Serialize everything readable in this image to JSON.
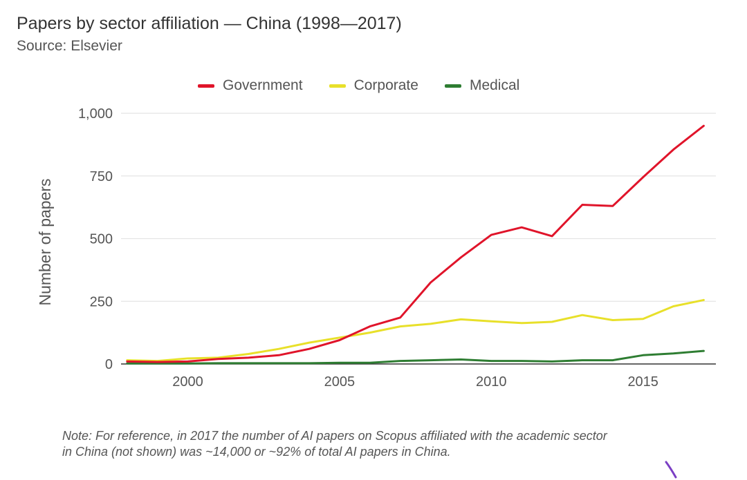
{
  "header": {
    "title": "Papers by sector affiliation — China (1998—2017)",
    "subtitle": "Source: Elsevier"
  },
  "note": {
    "line1": "Note: For reference, in 2017 the number of AI papers on Scopus affiliated with the academic sector",
    "line2": "in China (not shown) was ~14,000 or ~92% of total AI papers in China."
  },
  "colors": {
    "government": "#e0142a",
    "corporate": "#e8e02a",
    "medical": "#2e7d32",
    "grid": "#e4e4e4",
    "baseline": "#333333"
  },
  "chart_data": {
    "type": "line",
    "title": "Papers by sector affiliation — China (1998—2017)",
    "subtitle": "Source: Elsevier",
    "xlabel": "",
    "ylabel": "Number of papers",
    "x": [
      1998,
      1999,
      2000,
      2001,
      2002,
      2003,
      2004,
      2005,
      2006,
      2007,
      2008,
      2009,
      2010,
      2011,
      2012,
      2013,
      2014,
      2015,
      2016,
      2017
    ],
    "xlim": [
      1997.8,
      2017.4
    ],
    "ylim": [
      0,
      1000
    ],
    "x_ticks": [
      2000,
      2005,
      2010,
      2015
    ],
    "y_ticks": [
      0,
      250,
      500,
      750,
      1000
    ],
    "y_tick_labels": [
      "0",
      "250",
      "500",
      "750",
      "1,000"
    ],
    "grid": true,
    "legend": "top-center",
    "series": [
      {
        "name": "Government",
        "color": "#e0142a",
        "values": [
          10,
          8,
          10,
          20,
          25,
          35,
          60,
          95,
          150,
          185,
          325,
          425,
          515,
          545,
          510,
          635,
          630,
          745,
          855,
          950
        ]
      },
      {
        "name": "Corporate",
        "color": "#e8e02a",
        "values": [
          15,
          12,
          22,
          25,
          40,
          60,
          85,
          105,
          125,
          150,
          160,
          178,
          170,
          163,
          168,
          195,
          175,
          180,
          230,
          255
        ]
      },
      {
        "name": "Medical",
        "color": "#2e7d32",
        "values": [
          2,
          2,
          2,
          3,
          3,
          3,
          3,
          5,
          5,
          12,
          15,
          18,
          12,
          12,
          10,
          15,
          15,
          35,
          42,
          52
        ]
      }
    ]
  }
}
